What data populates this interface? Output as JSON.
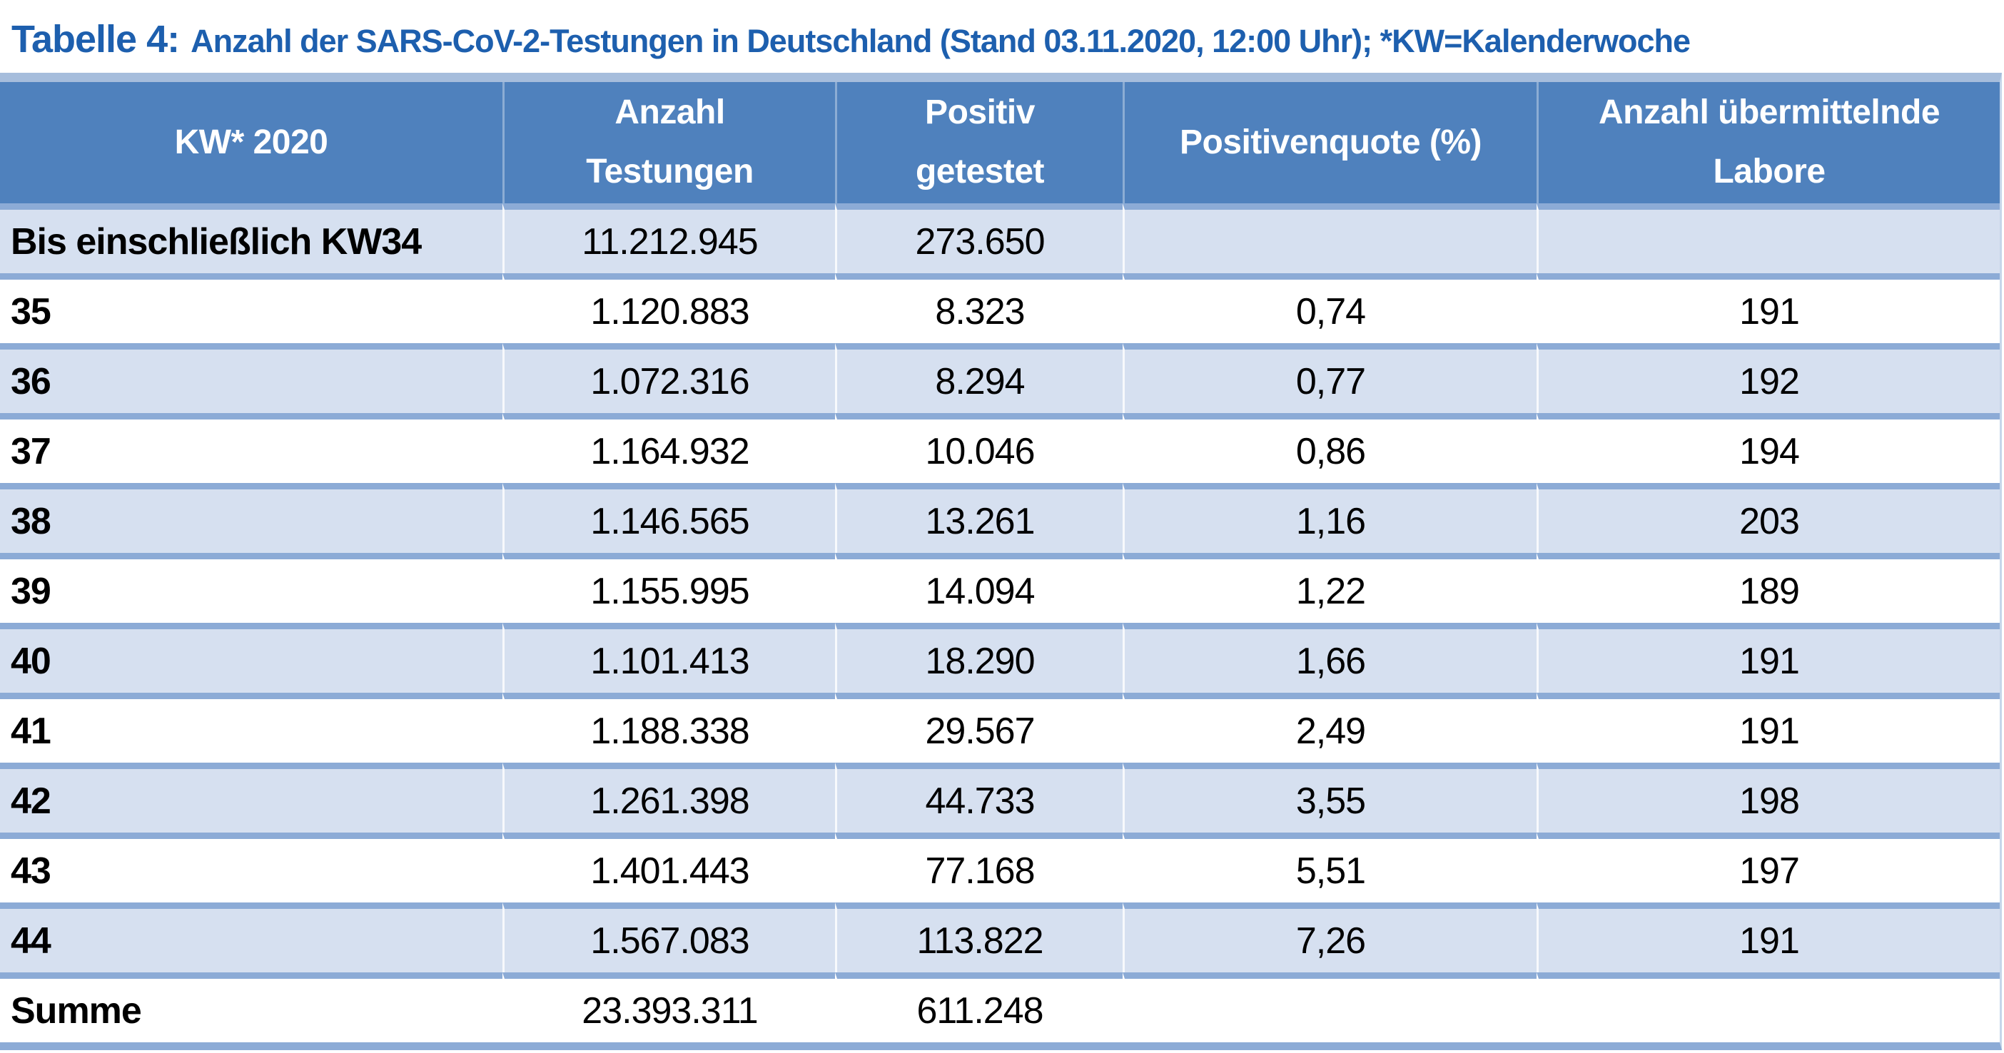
{
  "caption": {
    "label": "Tabelle 4:",
    "text": "Anzahl der SARS-CoV-2-Testungen in Deutschland (Stand 03.11.2020, 12:00 Uhr); *KW=Kalenderwoche"
  },
  "table": {
    "columns": [
      [
        "KW* 2020"
      ],
      [
        "Anzahl",
        "Testungen"
      ],
      [
        "Positiv",
        "getestet"
      ],
      [
        "Positivenquote (%)"
      ],
      [
        "Anzahl übermittelnde",
        "Labore"
      ]
    ],
    "rows": [
      [
        "Bis einschließlich KW34",
        "11.212.945",
        "273.650",
        "",
        ""
      ],
      [
        "35",
        "1.120.883",
        "8.323",
        "0,74",
        "191"
      ],
      [
        "36",
        "1.072.316",
        "8.294",
        "0,77",
        "192"
      ],
      [
        "37",
        "1.164.932",
        "10.046",
        "0,86",
        "194"
      ],
      [
        "38",
        "1.146.565",
        "13.261",
        "1,16",
        "203"
      ],
      [
        "39",
        "1.155.995",
        "14.094",
        "1,22",
        "189"
      ],
      [
        "40",
        "1.101.413",
        "18.290",
        "1,66",
        "191"
      ],
      [
        "41",
        "1.188.338",
        "29.567",
        "2,49",
        "191"
      ],
      [
        "42",
        "1.261.398",
        "44.733",
        "3,55",
        "198"
      ],
      [
        "43",
        "1.401.443",
        "77.168",
        "5,51",
        "197"
      ],
      [
        "44",
        "1.567.083",
        "113.822",
        "7,26",
        "191"
      ],
      [
        "Summe",
        "23.393.311",
        "611.248",
        "",
        ""
      ]
    ]
  },
  "colors": {
    "page_bg": "#ffffff",
    "caption_text": "#1d5fae",
    "header_bg": "#4f81bd",
    "header_text": "#ffffff",
    "row_bg": "#ffffff",
    "row_band_bg": "#d6e0f0",
    "grid_border": "#8cabd6",
    "table_top_border": "#a6bddc",
    "table_side_border": "#c6d6ea"
  }
}
